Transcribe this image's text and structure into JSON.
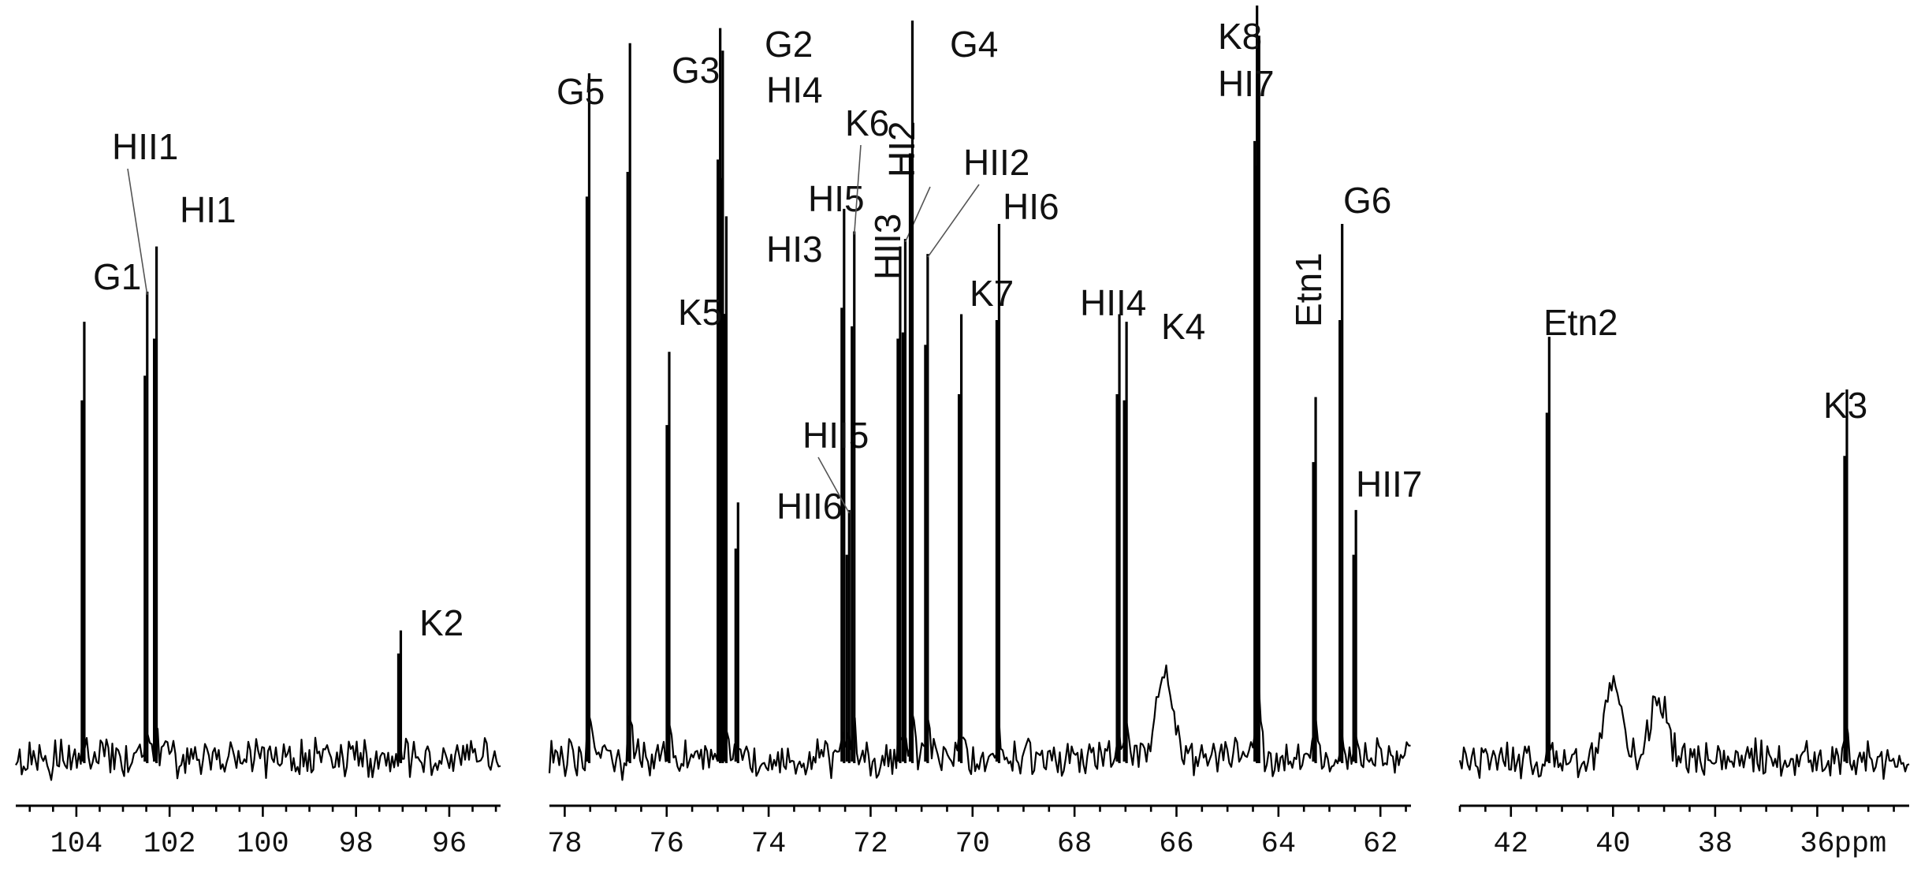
{
  "chart_data": {
    "type": "line",
    "chart_kind": "13C NMR spectrum",
    "x_axis": "reversed, broken into three segments",
    "unit_label": "ppm",
    "segments": [
      {
        "xlim": [
          105.3,
          94.9
        ],
        "ticks": [
          "104",
          "102",
          "100",
          "98",
          "96"
        ],
        "tick_values": [
          104,
          102,
          100,
          98,
          96
        ],
        "peaks": [
          {
            "label": "G1",
            "ppm": 103.83,
            "height": 0.58
          },
          {
            "label": "HII1",
            "ppm": 102.48,
            "height": 0.62
          },
          {
            "label": "HI1",
            "ppm": 102.28,
            "height": 0.68
          },
          {
            "label": "K2",
            "ppm": 97.04,
            "height": 0.17
          }
        ]
      },
      {
        "xlim": [
          78.3,
          61.4
        ],
        "ticks": [
          "78",
          "76",
          "74",
          "72",
          "70",
          "68",
          "66",
          "64",
          "62"
        ],
        "tick_values": [
          78,
          76,
          74,
          72,
          70,
          68,
          66,
          64,
          62
        ],
        "peaks": [
          {
            "label": "G5",
            "ppm": 77.52,
            "height": 0.91
          },
          {
            "label": "G3",
            "ppm": 76.72,
            "height": 0.95
          },
          {
            "label": "G2",
            "ppm": 74.95,
            "height": 0.97
          },
          {
            "label": "HI4",
            "ppm": 74.9,
            "height": 0.94
          },
          {
            "label": "HI3",
            "ppm": 74.83,
            "height": 0.72
          },
          {
            "label": "K5",
            "ppm": 75.95,
            "height": 0.54
          },
          {
            "label": "HII6",
            "ppm": 74.6,
            "height": 0.34
          },
          {
            "label": "HI5",
            "ppm": 72.52,
            "height": 0.73
          },
          {
            "label": "HII5",
            "ppm": 72.42,
            "height": 0.33
          },
          {
            "label": "K6",
            "ppm": 72.32,
            "height": 0.7
          },
          {
            "label": "HII3",
            "ppm": 71.42,
            "height": 0.68
          },
          {
            "label": "HI2",
            "ppm": 71.32,
            "height": 0.69
          },
          {
            "label": "G4",
            "ppm": 71.18,
            "height": 0.98
          },
          {
            "label": "HII2",
            "ppm": 70.88,
            "height": 0.67
          },
          {
            "label": "K7",
            "ppm": 70.22,
            "height": 0.59
          },
          {
            "label": "HI6",
            "ppm": 69.48,
            "height": 0.71
          },
          {
            "label": "HII4",
            "ppm": 67.12,
            "height": 0.59
          },
          {
            "label": "K4",
            "ppm": 66.98,
            "height": 0.58
          },
          {
            "label": "K8",
            "ppm": 64.42,
            "height": 1.0
          },
          {
            "label": "HI7",
            "ppm": 64.38,
            "height": 0.96
          },
          {
            "label": "Etn1",
            "ppm": 63.27,
            "height": 0.48
          },
          {
            "label": "G6",
            "ppm": 62.75,
            "height": 0.71
          },
          {
            "label": "HII7",
            "ppm": 62.48,
            "height": 0.33
          }
        ],
        "humps": [
          {
            "ppm": 66.25,
            "height": 0.12
          }
        ]
      },
      {
        "xlim": [
          43.0,
          34.2
        ],
        "ticks": [
          "42",
          "40",
          "38",
          "36"
        ],
        "tick_values": [
          42,
          40,
          38,
          36
        ],
        "peaks": [
          {
            "label": "Etn2",
            "ppm": 41.25,
            "height": 0.56
          },
          {
            "label": "K3",
            "ppm": 35.42,
            "height": 0.49
          }
        ],
        "humps": [
          {
            "ppm": 40.0,
            "height": 0.1
          },
          {
            "ppm": 39.1,
            "height": 0.08
          }
        ]
      }
    ]
  }
}
